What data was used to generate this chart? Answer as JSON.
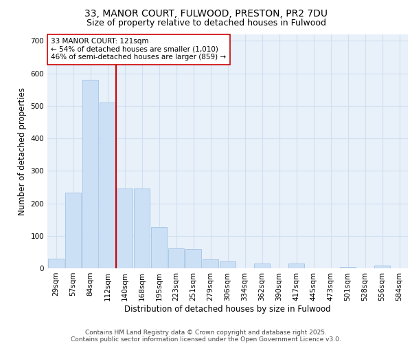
{
  "title_line1": "33, MANOR COURT, FULWOOD, PRESTON, PR2 7DU",
  "title_line2": "Size of property relative to detached houses in Fulwood",
  "xlabel": "Distribution of detached houses by size in Fulwood",
  "ylabel": "Number of detached properties",
  "categories": [
    "29sqm",
    "57sqm",
    "84sqm",
    "112sqm",
    "140sqm",
    "168sqm",
    "195sqm",
    "223sqm",
    "251sqm",
    "279sqm",
    "306sqm",
    "334sqm",
    "362sqm",
    "390sqm",
    "417sqm",
    "445sqm",
    "473sqm",
    "501sqm",
    "528sqm",
    "556sqm",
    "584sqm"
  ],
  "values": [
    30,
    232,
    580,
    510,
    245,
    245,
    128,
    62,
    60,
    28,
    22,
    0,
    15,
    0,
    14,
    0,
    0,
    5,
    0,
    8,
    0
  ],
  "bar_color": "#cce0f5",
  "bar_edge_color": "#aac8e8",
  "grid_color": "#d0dff0",
  "background_color": "#e8f0fa",
  "vline_color": "#cc0000",
  "annotation_text": "33 MANOR COURT: 121sqm\n← 54% of detached houses are smaller (1,010)\n46% of semi-detached houses are larger (859) →",
  "annotation_box_color": "#ffffff",
  "annotation_box_edge": "#cc0000",
  "ylim": [
    0,
    720
  ],
  "yticks": [
    0,
    100,
    200,
    300,
    400,
    500,
    600,
    700
  ],
  "footnote_line1": "Contains HM Land Registry data © Crown copyright and database right 2025.",
  "footnote_line2": "Contains public sector information licensed under the Open Government Licence v3.0.",
  "title_fontsize": 10,
  "subtitle_fontsize": 9,
  "axis_label_fontsize": 8.5,
  "tick_fontsize": 7.5,
  "annot_fontsize": 7.5,
  "footnote_fontsize": 6.5
}
